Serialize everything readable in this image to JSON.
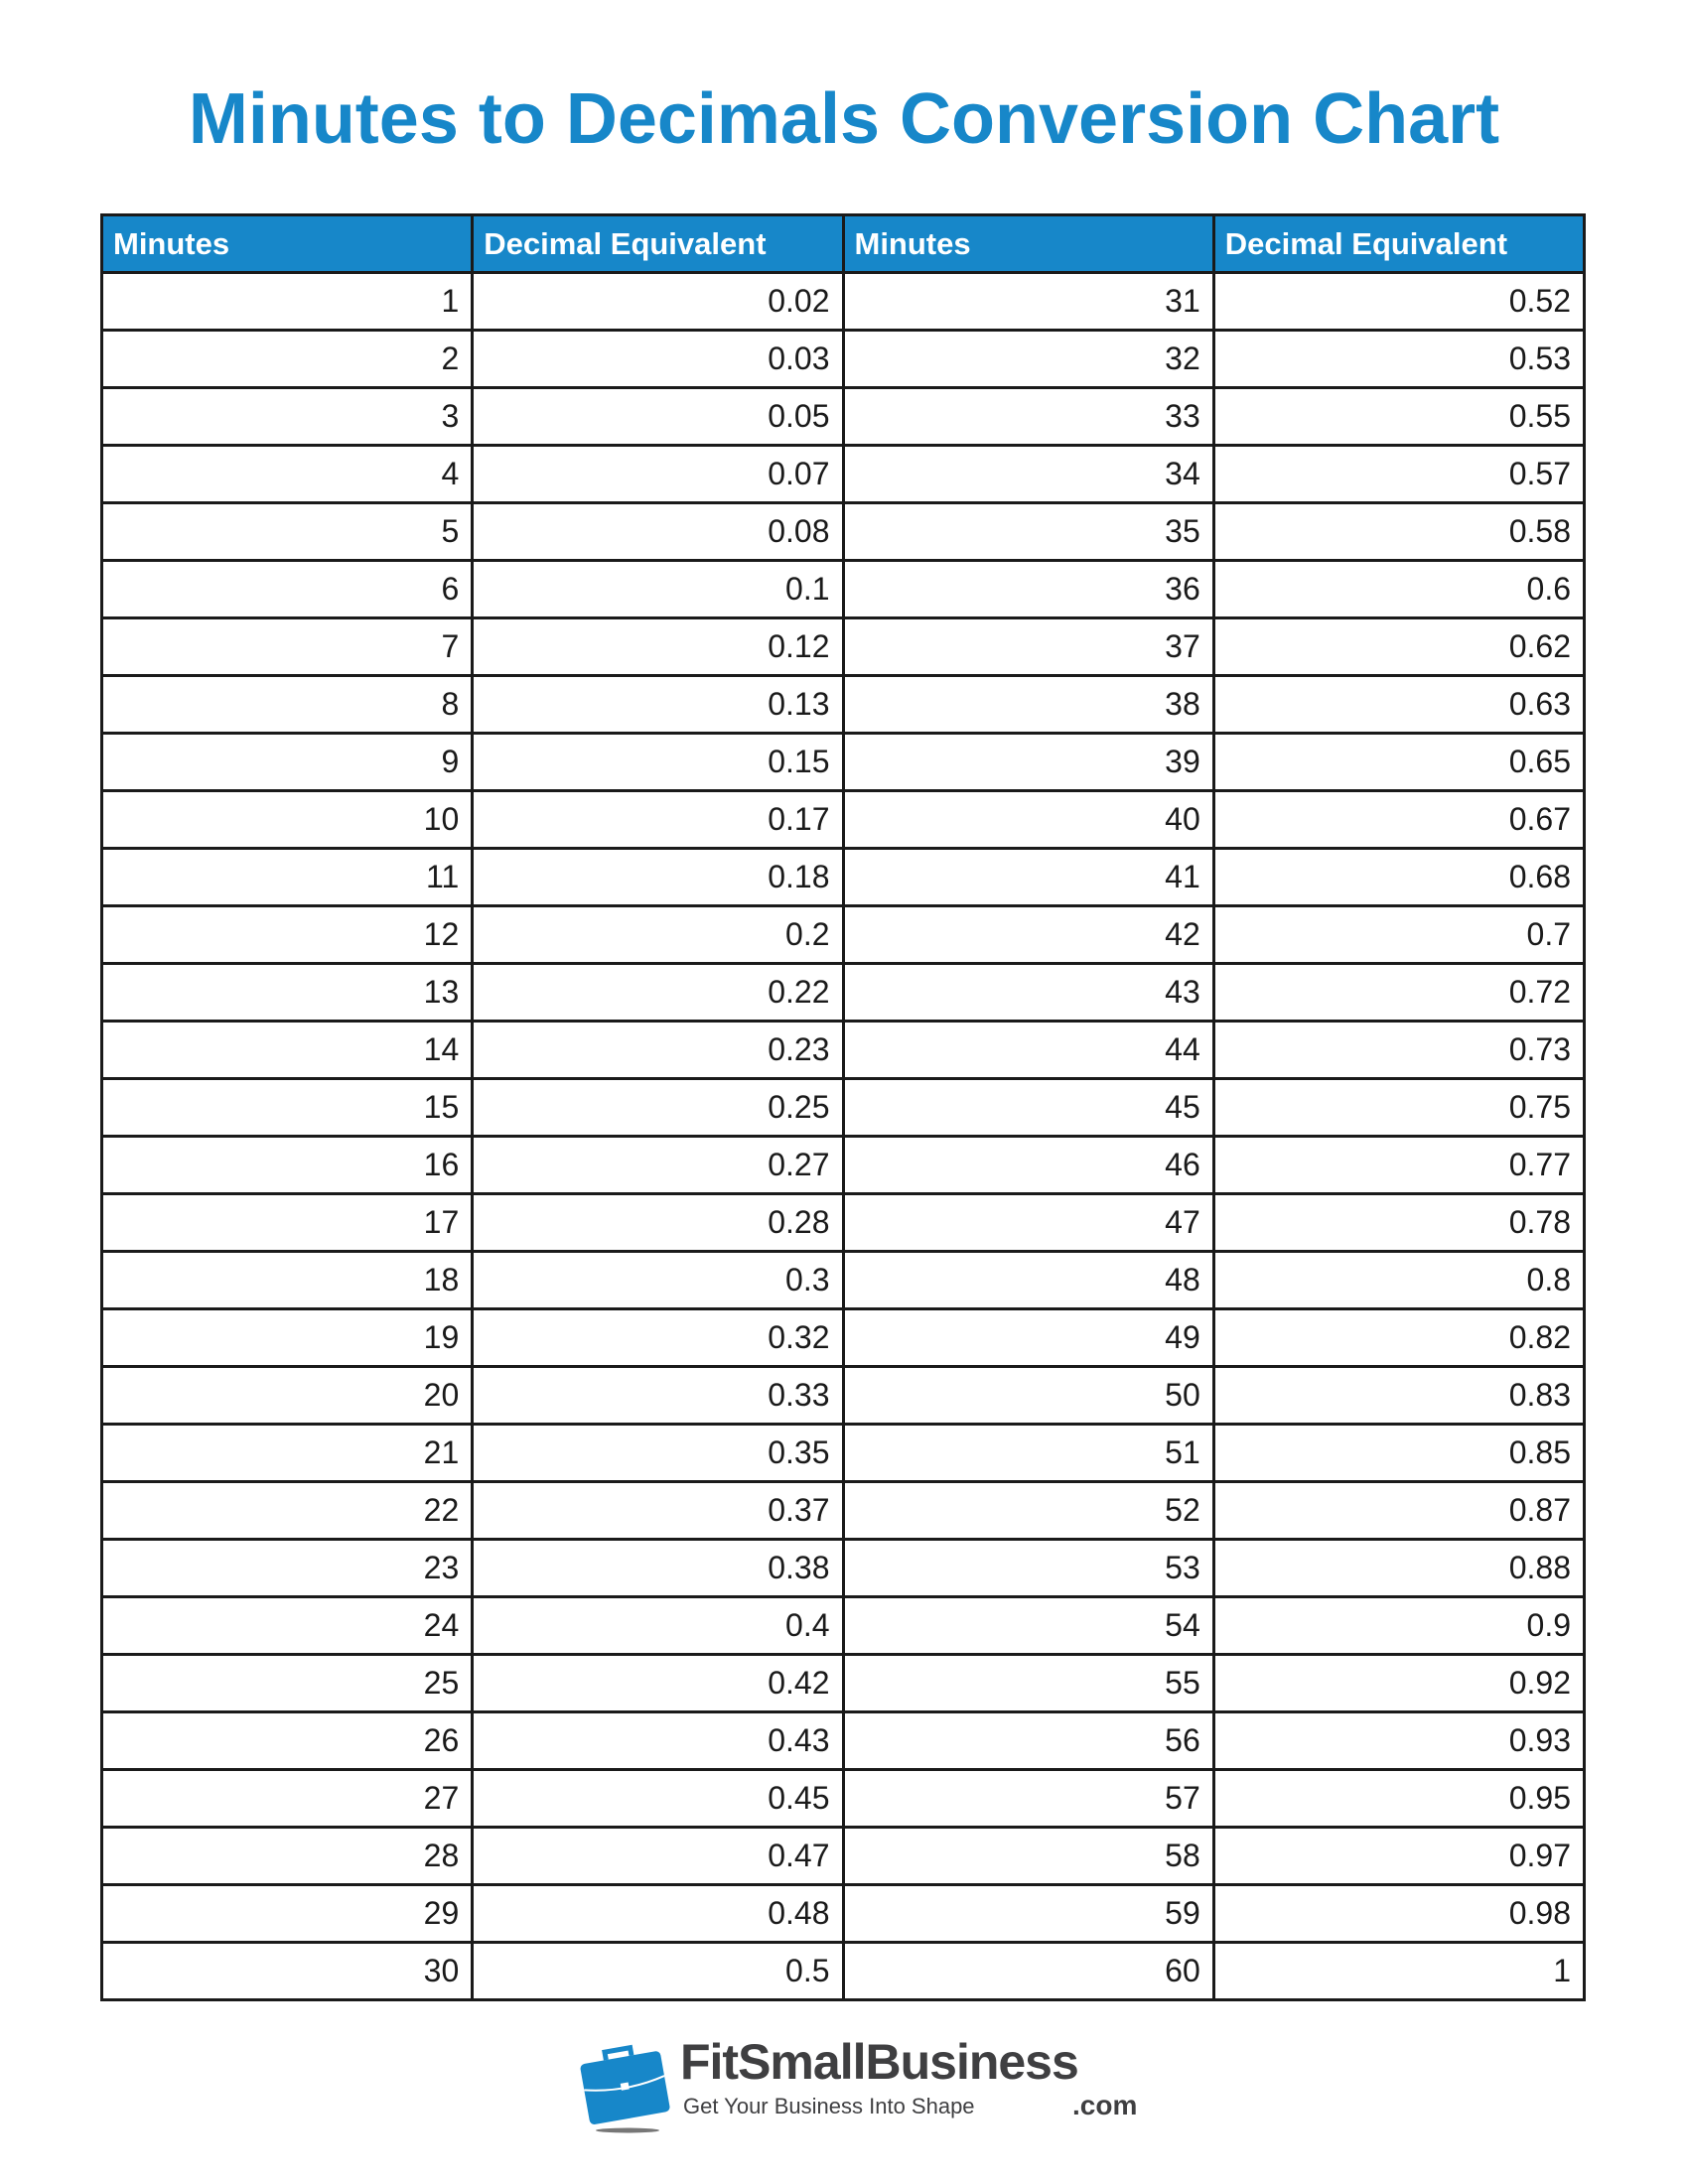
{
  "title": "Minutes to Decimals Conversion Chart",
  "headers": [
    "Minutes",
    "Decimal Equivalent",
    "Minutes",
    "Decimal Equivalent"
  ],
  "rows": [
    [
      "1",
      "0.02",
      "31",
      "0.52"
    ],
    [
      "2",
      "0.03",
      "32",
      "0.53"
    ],
    [
      "3",
      "0.05",
      "33",
      "0.55"
    ],
    [
      "4",
      "0.07",
      "34",
      "0.57"
    ],
    [
      "5",
      "0.08",
      "35",
      "0.58"
    ],
    [
      "6",
      "0.1",
      "36",
      "0.6"
    ],
    [
      "7",
      "0.12",
      "37",
      "0.62"
    ],
    [
      "8",
      "0.13",
      "38",
      "0.63"
    ],
    [
      "9",
      "0.15",
      "39",
      "0.65"
    ],
    [
      "10",
      "0.17",
      "40",
      "0.67"
    ],
    [
      "11",
      "0.18",
      "41",
      "0.68"
    ],
    [
      "12",
      "0.2",
      "42",
      "0.7"
    ],
    [
      "13",
      "0.22",
      "43",
      "0.72"
    ],
    [
      "14",
      "0.23",
      "44",
      "0.73"
    ],
    [
      "15",
      "0.25",
      "45",
      "0.75"
    ],
    [
      "16",
      "0.27",
      "46",
      "0.77"
    ],
    [
      "17",
      "0.28",
      "47",
      "0.78"
    ],
    [
      "18",
      "0.3",
      "48",
      "0.8"
    ],
    [
      "19",
      "0.32",
      "49",
      "0.82"
    ],
    [
      "20",
      "0.33",
      "50",
      "0.83"
    ],
    [
      "21",
      "0.35",
      "51",
      "0.85"
    ],
    [
      "22",
      "0.37",
      "52",
      "0.87"
    ],
    [
      "23",
      "0.38",
      "53",
      "0.88"
    ],
    [
      "24",
      "0.4",
      "54",
      "0.9"
    ],
    [
      "25",
      "0.42",
      "55",
      "0.92"
    ],
    [
      "26",
      "0.43",
      "56",
      "0.93"
    ],
    [
      "27",
      "0.45",
      "57",
      "0.95"
    ],
    [
      "28",
      "0.47",
      "58",
      "0.97"
    ],
    [
      "29",
      "0.48",
      "59",
      "0.98"
    ],
    [
      "30",
      "0.5",
      "60",
      "1"
    ]
  ],
  "logo": {
    "brand": "FitSmallBusiness",
    "tagline": "Get Your Business Into Shape",
    "suffix": ".com",
    "icon": "briefcase-icon"
  },
  "colors": {
    "accent": "#1787c9",
    "text": "#1a1a1a",
    "logo_text": "#3f3f41"
  }
}
